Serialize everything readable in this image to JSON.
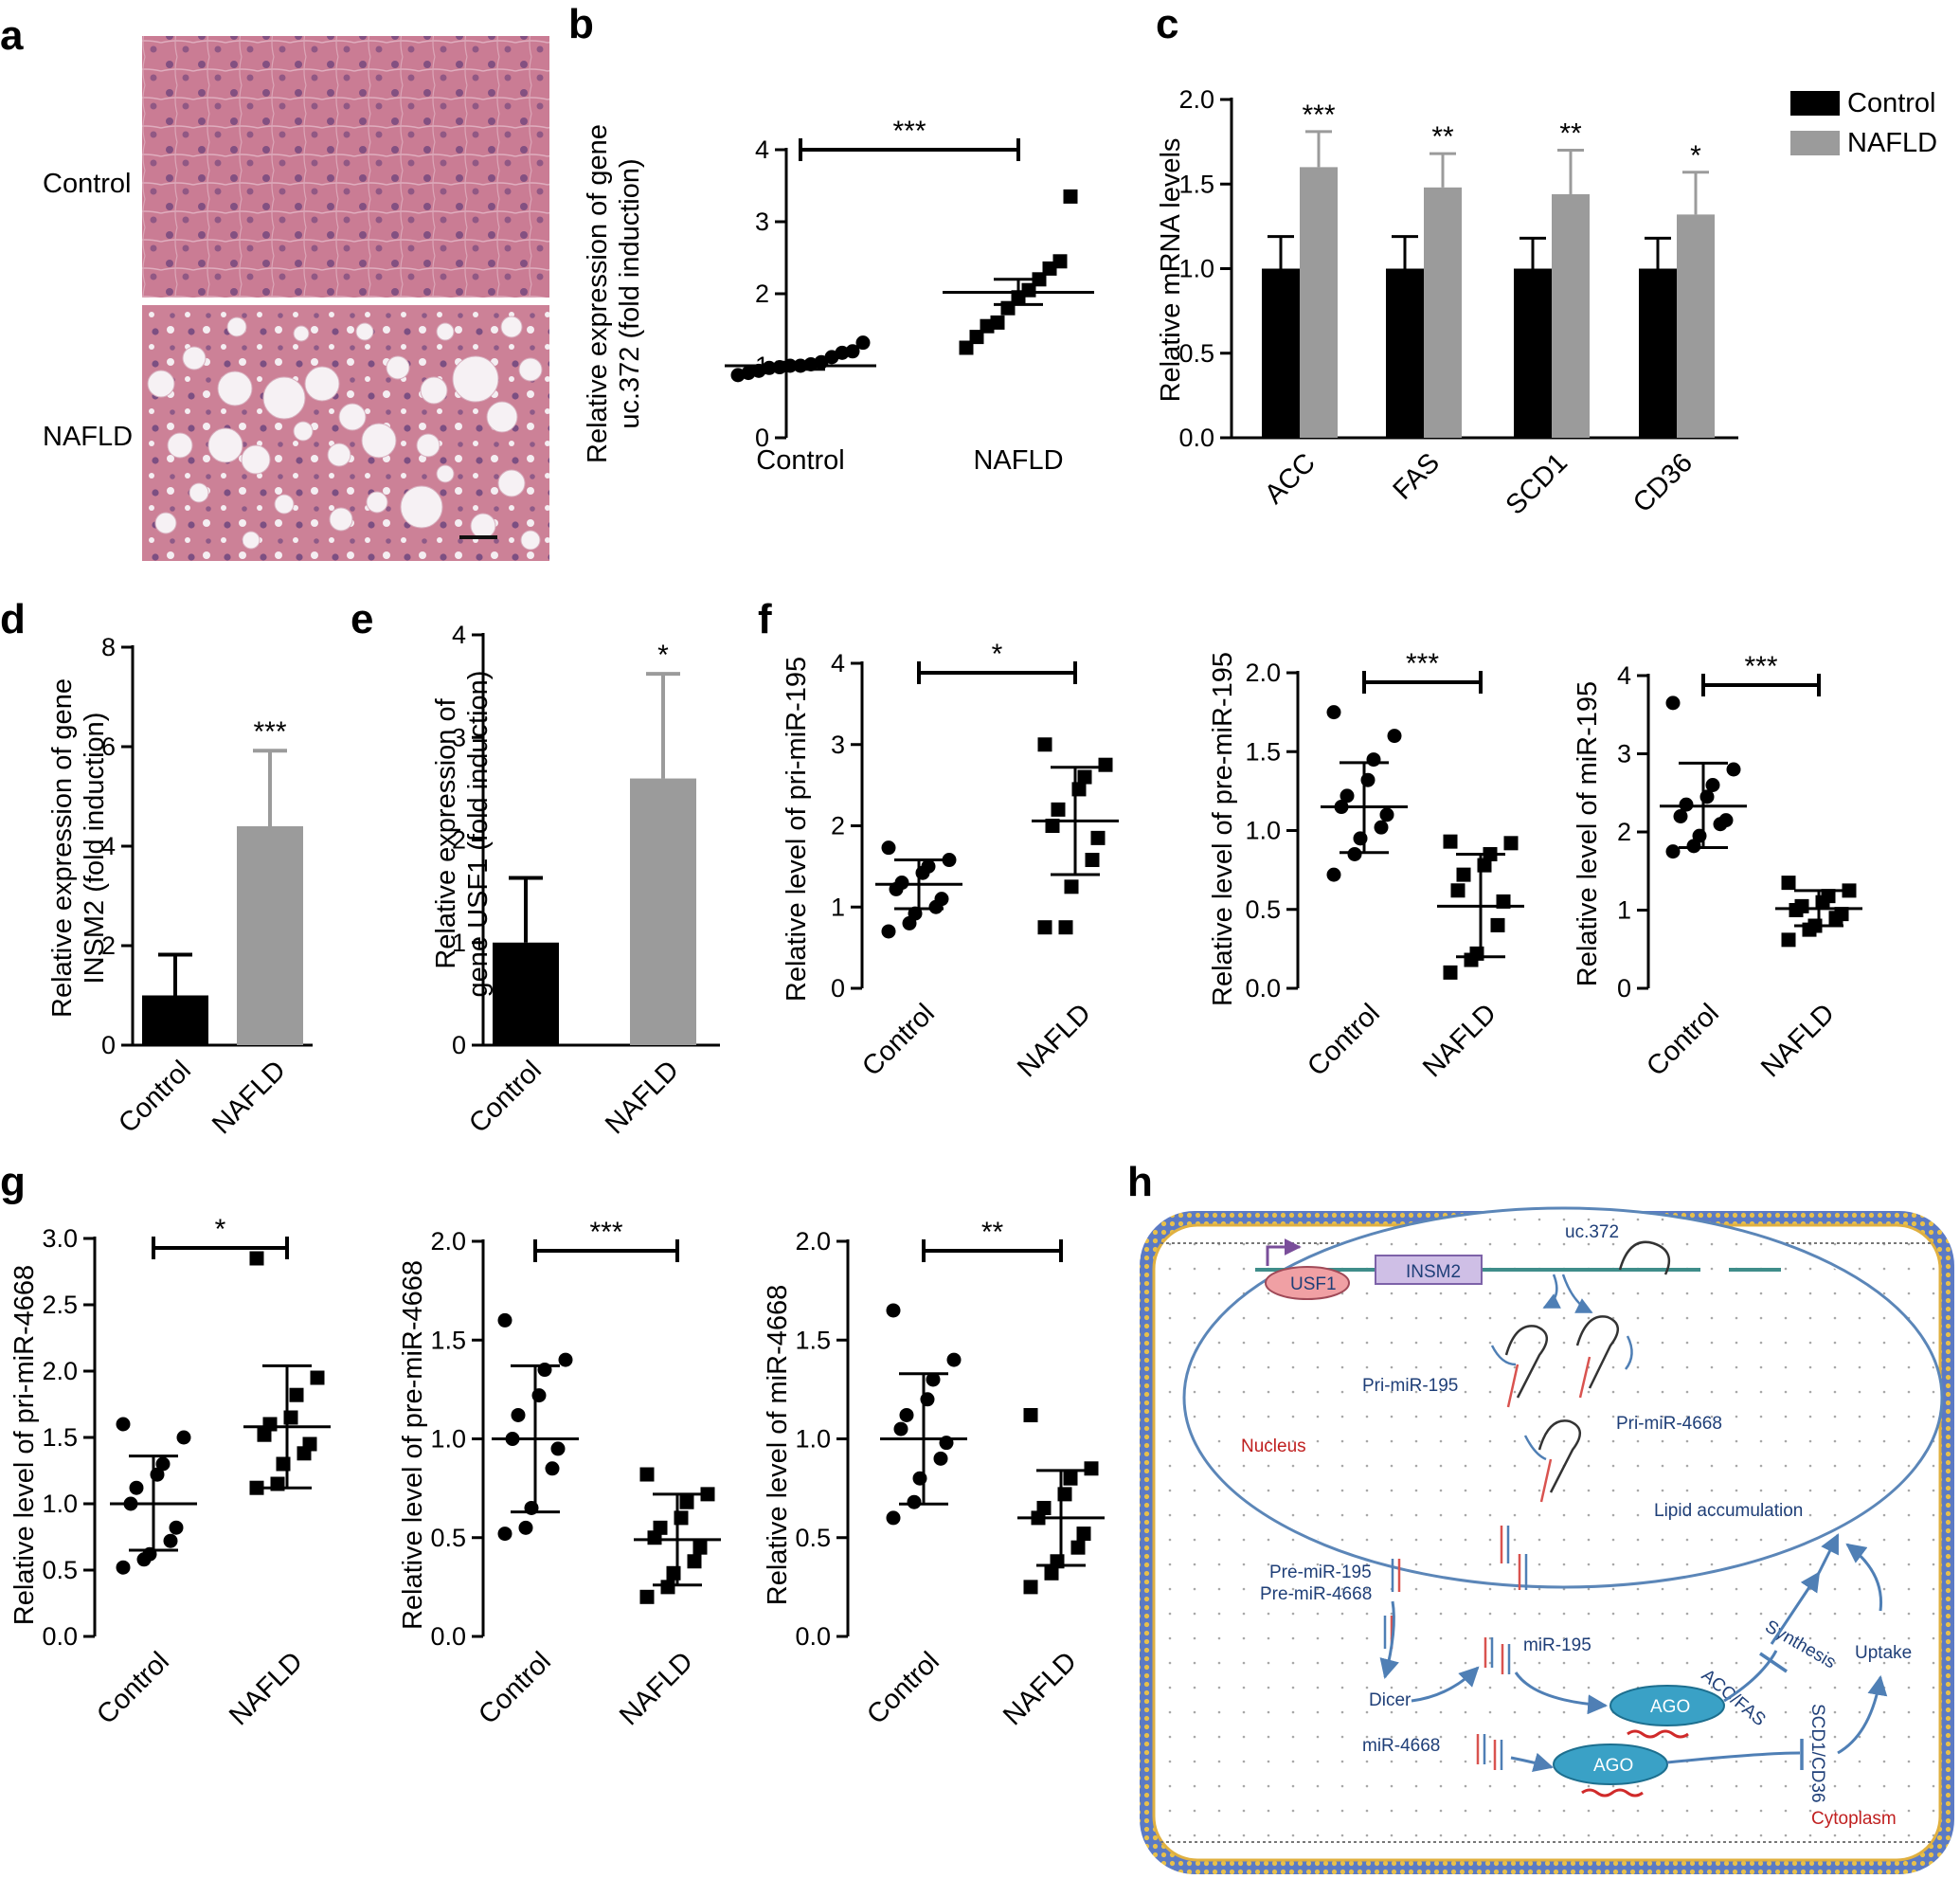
{
  "panels": {
    "a": {
      "label": "a",
      "row_labels": [
        "Control",
        "NAFLD"
      ]
    },
    "h": {
      "label": "h",
      "texts": {
        "uc372": "uc.372",
        "usf1": "USF1",
        "insm2": "INSM2",
        "pri195": "Pri-miR-195",
        "pri4668": "Pri-miR-4668",
        "nucleus": "Nucleus",
        "lipid": "Lipid accumulation",
        "pre195": "Pre-miR-195",
        "pre4668": "Pre-miR-4668",
        "synthesis": "Synthesis",
        "accfas": "ACC/FAS",
        "mir195": "miR-195",
        "dicer": "Dicer",
        "uptake": "Uptake",
        "ago1": "AGO",
        "ago2": "AGO",
        "scd1cd36": "SCD1/CD36",
        "mir4668": "miR-4668",
        "cytoplasm": "Cytoplasm"
      }
    }
  },
  "chart_data": [
    {
      "id": "b",
      "panel_label": "b",
      "type": "scatter",
      "ylabel": "Relative expression of gene uc.372 (fold induction)",
      "ylabel_lines": [
        "Relative expression of gene",
        "uc.372 (fold induction)"
      ],
      "yticks": [
        "0",
        "1",
        "2",
        "3",
        "4"
      ],
      "ylim": [
        0,
        4
      ],
      "categories": [
        "Control",
        "NAFLD"
      ],
      "significance": "***",
      "series": [
        {
          "values": [
            0.87,
            0.9,
            0.93,
            0.97,
            0.98,
            1.0,
            1.0,
            1.02,
            1.05,
            1.12,
            1.18,
            1.2,
            1.32
          ],
          "mean": 1.0,
          "err_low": 0.95,
          "err_high": 1.05
        },
        {
          "values": [
            1.25,
            1.4,
            1.55,
            1.6,
            1.8,
            1.95,
            2.05,
            2.2,
            2.35,
            2.45,
            3.35
          ],
          "mean": 2.02,
          "err_low": 1.85,
          "err_high": 2.2
        }
      ]
    },
    {
      "id": "c",
      "panel_label": "c",
      "type": "bar",
      "ylabel": "Relative mRNA levels",
      "yticks": [
        "0.0",
        "0.5",
        "1.0",
        "1.5",
        "2.0"
      ],
      "ylim": [
        0,
        2.0
      ],
      "categories": [
        "ACC",
        "FAS",
        "SCD1",
        "CD36"
      ],
      "significance": [
        "***",
        "**",
        "**",
        "*"
      ],
      "legend": [
        "Control",
        "NAFLD"
      ],
      "legend_position": "top-right",
      "colors": [
        "#000000",
        "#9b9b9b"
      ],
      "series": [
        {
          "name": "Control",
          "values": [
            1.0,
            1.0,
            1.0,
            1.0
          ],
          "errors": [
            0.19,
            0.19,
            0.18,
            0.18
          ]
        },
        {
          "name": "NAFLD",
          "values": [
            1.6,
            1.48,
            1.44,
            1.32
          ],
          "errors": [
            0.21,
            0.2,
            0.26,
            0.25
          ]
        }
      ]
    },
    {
      "id": "d",
      "panel_label": "d",
      "type": "bar",
      "ylabel": "Relative expression of gene INSM2 (fold induction)",
      "ylabel_lines": [
        "Relative expression of gene",
        "INSM2 (fold induction)"
      ],
      "yticks": [
        "0",
        "2",
        "4",
        "6",
        "8"
      ],
      "ylim": [
        0,
        8
      ],
      "categories": [
        "Control",
        "NAFLD"
      ],
      "significance": "***",
      "colors": [
        "#000000",
        "#9b9b9b"
      ],
      "values": [
        1.0,
        4.4
      ],
      "errors": [
        0.82,
        1.52
      ]
    },
    {
      "id": "e",
      "panel_label": "e",
      "type": "bar",
      "ylabel": "Relative expression of gene USF1 (fold induction)",
      "ylabel_lines": [
        "Relative expression of",
        "gene USF1 (fold induction)"
      ],
      "yticks": [
        "0",
        "1",
        "2",
        "3",
        "4"
      ],
      "ylim": [
        0,
        4
      ],
      "categories": [
        "Control",
        "NAFLD"
      ],
      "significance": "*",
      "colors": [
        "#000000",
        "#9b9b9b"
      ],
      "values": [
        1.0,
        2.6
      ],
      "errors": [
        0.63,
        1.02
      ]
    },
    {
      "id": "f1",
      "panel_label": "f",
      "type": "scatter",
      "ylabel": "Relative level of pri-miR-195",
      "yticks": [
        "0",
        "1",
        "2",
        "3",
        "4"
      ],
      "ylim": [
        0,
        4
      ],
      "categories": [
        "Control",
        "NAFLD"
      ],
      "significance": "*",
      "series": [
        {
          "values": [
            0.7,
            0.8,
            0.92,
            1.0,
            1.1,
            1.22,
            1.3,
            1.42,
            1.5,
            1.58,
            1.73
          ],
          "mean": 1.28,
          "err_low": 0.98,
          "err_high": 1.58
        },
        {
          "values": [
            0.75,
            0.75,
            1.25,
            1.58,
            1.85,
            2.0,
            2.2,
            2.45,
            2.6,
            2.75,
            3.0
          ],
          "mean": 2.06,
          "err_low": 1.4,
          "err_high": 2.72
        }
      ]
    },
    {
      "id": "f2",
      "type": "scatter",
      "ylabel": "Relative level of pre-miR-195",
      "yticks": [
        "0.0",
        "0.5",
        "1.0",
        "1.5",
        "2.0"
      ],
      "ylim": [
        0,
        2.0
      ],
      "categories": [
        "Control",
        "NAFLD"
      ],
      "significance": "***",
      "series": [
        {
          "values": [
            0.72,
            0.85,
            0.95,
            1.02,
            1.1,
            1.15,
            1.22,
            1.32,
            1.45,
            1.6,
            1.75
          ],
          "mean": 1.15,
          "err_low": 0.86,
          "err_high": 1.43
        },
        {
          "values": [
            0.1,
            0.18,
            0.22,
            0.4,
            0.55,
            0.62,
            0.72,
            0.78,
            0.85,
            0.92,
            0.93
          ],
          "mean": 0.52,
          "err_low": 0.2,
          "err_high": 0.85
        }
      ]
    },
    {
      "id": "f3",
      "type": "scatter",
      "ylabel": "Relative level of miR-195",
      "yticks": [
        "0",
        "1",
        "2",
        "3",
        "4"
      ],
      "ylim": [
        0,
        4
      ],
      "categories": [
        "Control",
        "NAFLD"
      ],
      "significance": "***",
      "series": [
        {
          "values": [
            1.75,
            1.82,
            1.95,
            2.1,
            2.15,
            2.2,
            2.35,
            2.45,
            2.6,
            2.8,
            3.65
          ],
          "mean": 2.33,
          "err_low": 1.8,
          "err_high": 2.88
        },
        {
          "values": [
            0.62,
            0.75,
            0.8,
            0.9,
            0.95,
            1.0,
            1.05,
            1.1,
            1.18,
            1.25,
            1.35
          ],
          "mean": 1.02,
          "err_low": 0.8,
          "err_high": 1.25
        }
      ]
    },
    {
      "id": "g1",
      "panel_label": "g",
      "type": "scatter",
      "ylabel": "Relative level of pri-miR-4668",
      "yticks": [
        "0.0",
        "0.5",
        "1.0",
        "1.5",
        "2.0",
        "2.5",
        "3.0"
      ],
      "ylim": [
        0,
        3.0
      ],
      "categories": [
        "Control",
        "NAFLD"
      ],
      "significance": "*",
      "series": [
        {
          "values": [
            0.52,
            0.58,
            0.62,
            0.72,
            0.82,
            1.0,
            1.12,
            1.22,
            1.3,
            1.5,
            1.6
          ],
          "mean": 1.0,
          "err_low": 0.65,
          "err_high": 1.36
        },
        {
          "values": [
            1.12,
            1.15,
            1.3,
            1.38,
            1.45,
            1.52,
            1.6,
            1.65,
            1.82,
            1.95,
            2.85
          ],
          "mean": 1.58,
          "err_low": 1.12,
          "err_high": 2.04
        }
      ]
    },
    {
      "id": "g2",
      "type": "scatter",
      "ylabel": "Relative level of pre-miR-4668",
      "yticks": [
        "0.0",
        "0.5",
        "1.0",
        "1.5",
        "2.0"
      ],
      "ylim": [
        0,
        2.0
      ],
      "categories": [
        "Control",
        "NAFLD"
      ],
      "significance": "***",
      "series": [
        {
          "values": [
            0.52,
            0.55,
            0.65,
            0.85,
            0.95,
            1.0,
            1.12,
            1.22,
            1.35,
            1.4,
            1.6
          ],
          "mean": 1.0,
          "err_low": 0.63,
          "err_high": 1.37
        },
        {
          "values": [
            0.2,
            0.25,
            0.32,
            0.38,
            0.45,
            0.5,
            0.55,
            0.6,
            0.68,
            0.72,
            0.82
          ],
          "mean": 0.49,
          "err_low": 0.26,
          "err_high": 0.72
        }
      ]
    },
    {
      "id": "g3",
      "type": "scatter",
      "ylabel": "Relative level of miR-4668",
      "yticks": [
        "0.0",
        "0.5",
        "1.0",
        "1.5",
        "2.0"
      ],
      "ylim": [
        0,
        2.0
      ],
      "categories": [
        "Control",
        "NAFLD"
      ],
      "significance": "**",
      "series": [
        {
          "values": [
            0.6,
            0.68,
            0.8,
            0.9,
            0.98,
            1.05,
            1.12,
            1.2,
            1.3,
            1.4,
            1.65
          ],
          "mean": 1.0,
          "err_low": 0.67,
          "err_high": 1.33
        },
        {
          "values": [
            0.25,
            0.32,
            0.38,
            0.45,
            0.52,
            0.6,
            0.65,
            0.72,
            0.8,
            0.85,
            1.12
          ],
          "mean": 0.6,
          "err_low": 0.36,
          "err_high": 0.84
        }
      ]
    }
  ]
}
